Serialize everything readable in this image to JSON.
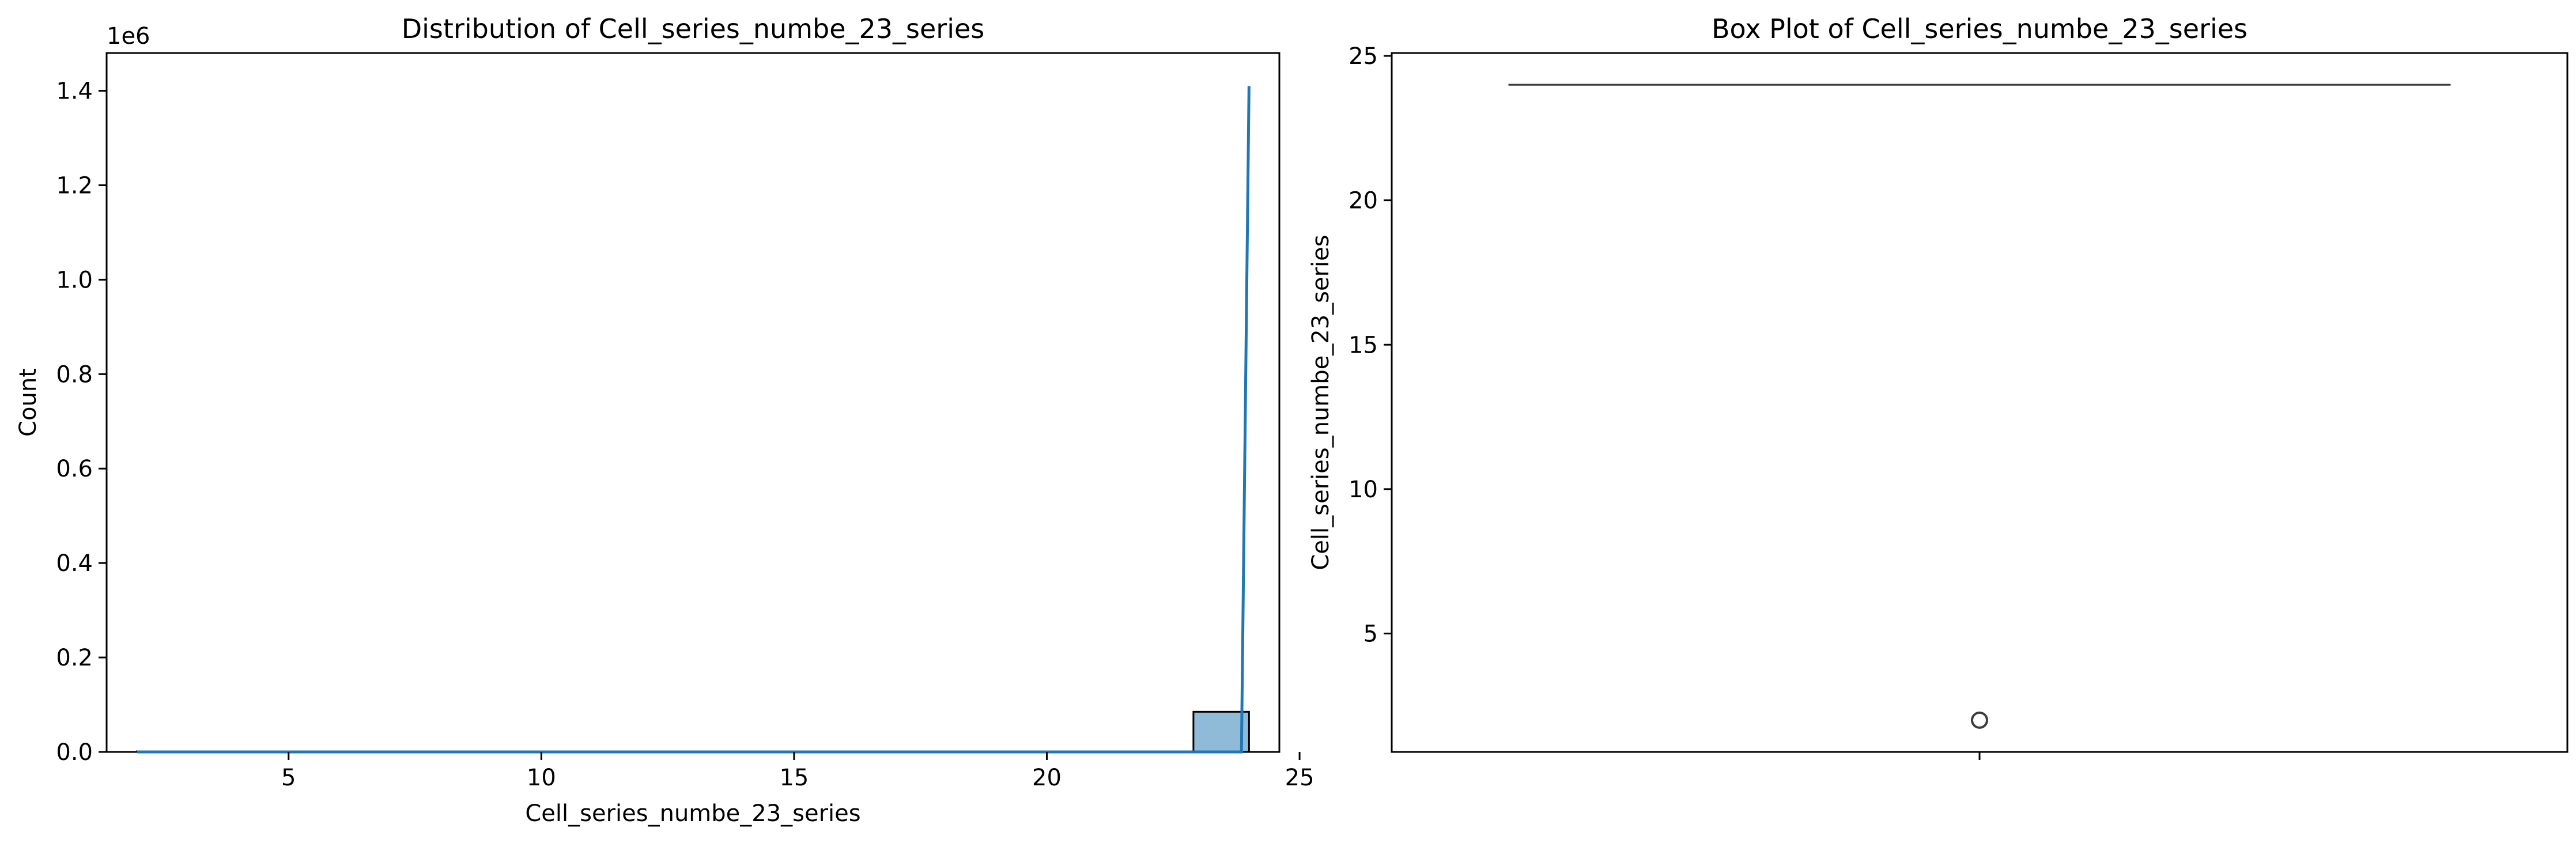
{
  "chart_data": [
    {
      "type": "histogram",
      "title": "Distribution of Cell_series_numbe_23_series",
      "xlabel": "Cell_series_numbe_23_series",
      "ylabel": "Count",
      "offset_label": "1e6",
      "xlim": [
        1.4,
        24.6
      ],
      "ylim": [
        0,
        1480000
      ],
      "x_ticks": [
        5,
        10,
        15,
        20,
        25
      ],
      "y_ticks": [
        0,
        200000,
        400000,
        600000,
        800000,
        1000000,
        1200000,
        1400000
      ],
      "y_tick_labels": [
        "0.0",
        "0.2",
        "0.4",
        "0.6",
        "0.8",
        "1.0",
        "1.2",
        "1.4"
      ],
      "bins": [
        {
          "x0": 2.0,
          "x1": 22.9,
          "count": 0
        },
        {
          "x0": 22.9,
          "x1": 24.0,
          "count": 85000
        }
      ],
      "kde": {
        "x": [
          2.0,
          23.85,
          24.0
        ],
        "y": [
          0,
          0,
          1410000
        ]
      },
      "colors": {
        "bar_fill": "#1f77b4",
        "bar_fill_opacity": 0.5,
        "bar_edge": "#000000",
        "kde_line": "#1f77b4"
      }
    },
    {
      "type": "box",
      "title": "Box Plot of Cell_series_numbe_23_series",
      "ylabel": "Cell_series_numbe_23_series",
      "ylim": [
        0.9,
        25.1
      ],
      "y_ticks": [
        5,
        10,
        15,
        20,
        25
      ],
      "box": {
        "q1": 24,
        "median": 24,
        "q3": 24,
        "whisker_low": 24,
        "whisker_high": 24
      },
      "outliers": [
        2
      ],
      "colors": {
        "line": "#3d3d3d",
        "outlier_edge": "#3d3d3d"
      }
    }
  ]
}
